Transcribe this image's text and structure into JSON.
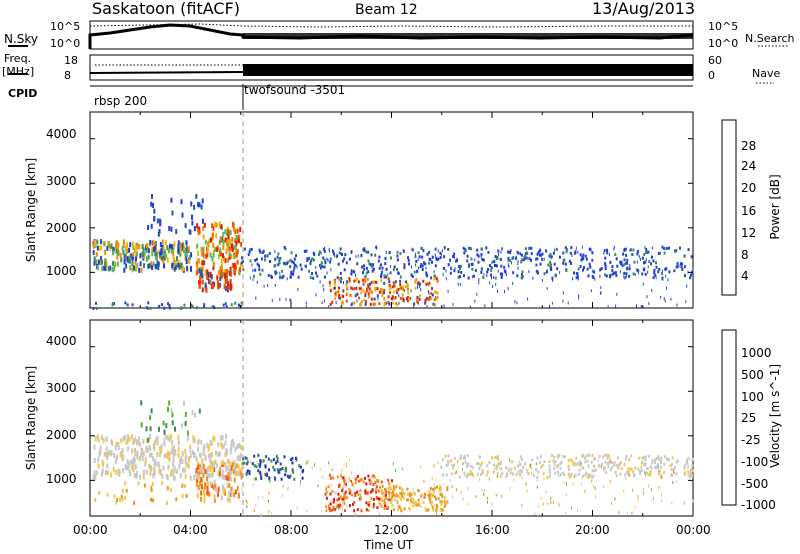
{
  "header": {
    "station_title": "Saskatoon (fitACF)",
    "beam": "Beam 12",
    "date": "13/Aug/2013"
  },
  "left_labels": {
    "nsky": "N.Sky",
    "freq_l1": "Freq.",
    "freq_l2": "[MHz]",
    "cpid": "CPID"
  },
  "right_labels": {
    "nsearch": "N.Search",
    "nave": "Nave"
  },
  "noise_axis": {
    "left_top": "10^5",
    "left_bottom": "10^0",
    "right_top": "10^5",
    "right_bottom": "10^0"
  },
  "freq_axis": {
    "left_top": "18",
    "left_bottom": "8",
    "right_top": "60",
    "right_bottom": "0"
  },
  "cpid_modes": [
    "rbsp 200",
    "twofsound -3501"
  ],
  "colors": {
    "power_scale": [
      "#1e3cdc",
      "#2850b4",
      "#3c8c5a",
      "#64b45a",
      "#f0b400",
      "#f08c00",
      "#f05000",
      "#e61e00"
    ],
    "velocity_scale": [
      "#e61414",
      "#f05a14",
      "#f0961e",
      "#f0c850",
      "#c8c8c8",
      "#5ab428",
      "#3c8c50",
      "#2850b4",
      "#1e32b4"
    ],
    "data_blue": "#2346b4",
    "data_grey": "#c0c0c0"
  },
  "chart_data": [
    {
      "type": "heatmap",
      "title": "",
      "xlabel": "",
      "ylabel": "Slant Range [km]",
      "yticks": [
        "1000",
        "2000",
        "3000",
        "4000"
      ],
      "ylim": [
        200,
        4600
      ],
      "colorbar": {
        "label": "Power [dB]",
        "ticks": [
          "4",
          "8",
          "12",
          "16",
          "20",
          "24",
          "28"
        ]
      },
      "regions": [
        {
          "x": [
            0.0,
            6.0
          ],
          "range": [
            1100,
            1800
          ],
          "value": "20 dB"
        },
        {
          "x": [
            4.3,
            6.0
          ],
          "range": [
            600,
            2100
          ],
          "value": "28 dB"
        },
        {
          "x": [
            6.0,
            24.0
          ],
          "range": [
            900,
            1600
          ],
          "value": "8 dB"
        },
        {
          "x": [
            10.0,
            13.5
          ],
          "range": [
            300,
            900
          ],
          "value": "28 dB"
        }
      ]
    },
    {
      "type": "heatmap",
      "title": "",
      "xlabel": "Time UT",
      "ylabel": "Slant Range [km]",
      "yticks": [
        "1000",
        "2000",
        "3000",
        "4000"
      ],
      "ylim": [
        200,
        4600
      ],
      "xticks": [
        "00:00",
        "04:00",
        "08:00",
        "12:00",
        "16:00",
        "20:00",
        "00:00"
      ],
      "colorbar": {
        "label": "Velocity [m s^-1]",
        "ticks": [
          "1000",
          "500",
          "100",
          "25",
          "-25",
          "-100",
          "-500",
          "-1000"
        ]
      },
      "regions": [
        {
          "x": [
            0.0,
            6.0
          ],
          "range": [
            1100,
            2000
          ],
          "value": "-25..25 m/s"
        },
        {
          "x": [
            4.3,
            6.0
          ],
          "range": [
            600,
            1600
          ],
          "value": "-100 m/s"
        },
        {
          "x": [
            9.5,
            14.0
          ],
          "range": [
            300,
            1000
          ],
          "value": "-500 m/s"
        },
        {
          "x": [
            14.0,
            24.0
          ],
          "range": [
            1100,
            1600
          ],
          "value": "-25..25 m/s"
        }
      ]
    }
  ]
}
